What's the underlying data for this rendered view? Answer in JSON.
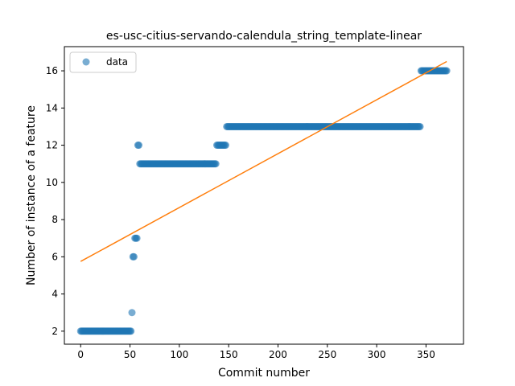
{
  "chart_data": {
    "type": "scatter",
    "title": "es-usc-citius-servando-calendula_string_template-linear",
    "xlabel": "Commit number",
    "ylabel": "Number of instance of a feature",
    "xlim": [
      -16.5,
      388
    ],
    "ylim": [
      1.3,
      17.3
    ],
    "xticks": [
      0,
      50,
      100,
      150,
      200,
      250,
      300,
      350
    ],
    "yticks": [
      2,
      4,
      6,
      8,
      10,
      12,
      14,
      16
    ],
    "legend": {
      "position": "top-left",
      "entries": [
        "data"
      ]
    },
    "colors": {
      "scatter": "#1f77b4",
      "fit": "#ff7f0e"
    },
    "series": [
      {
        "name": "data",
        "kind": "scatter",
        "segments": [
          {
            "x_start": 0,
            "x_end": 51,
            "y": 2
          },
          {
            "x_start": 52,
            "x_end": 52,
            "y": 3
          },
          {
            "x_start": 53,
            "x_end": 54,
            "y": 6
          },
          {
            "x_start": 55,
            "x_end": 57,
            "y": 7
          },
          {
            "x_start": 58,
            "x_end": 59,
            "y": 12
          },
          {
            "x_start": 60,
            "x_end": 137,
            "y": 11
          },
          {
            "x_start": 138,
            "x_end": 147,
            "y": 12
          },
          {
            "x_start": 148,
            "x_end": 344,
            "y": 13
          },
          {
            "x_start": 345,
            "x_end": 371,
            "y": 16
          }
        ]
      },
      {
        "name": "linear fit",
        "kind": "line",
        "x": [
          0,
          371
        ],
        "y": [
          5.75,
          16.5
        ]
      }
    ]
  }
}
